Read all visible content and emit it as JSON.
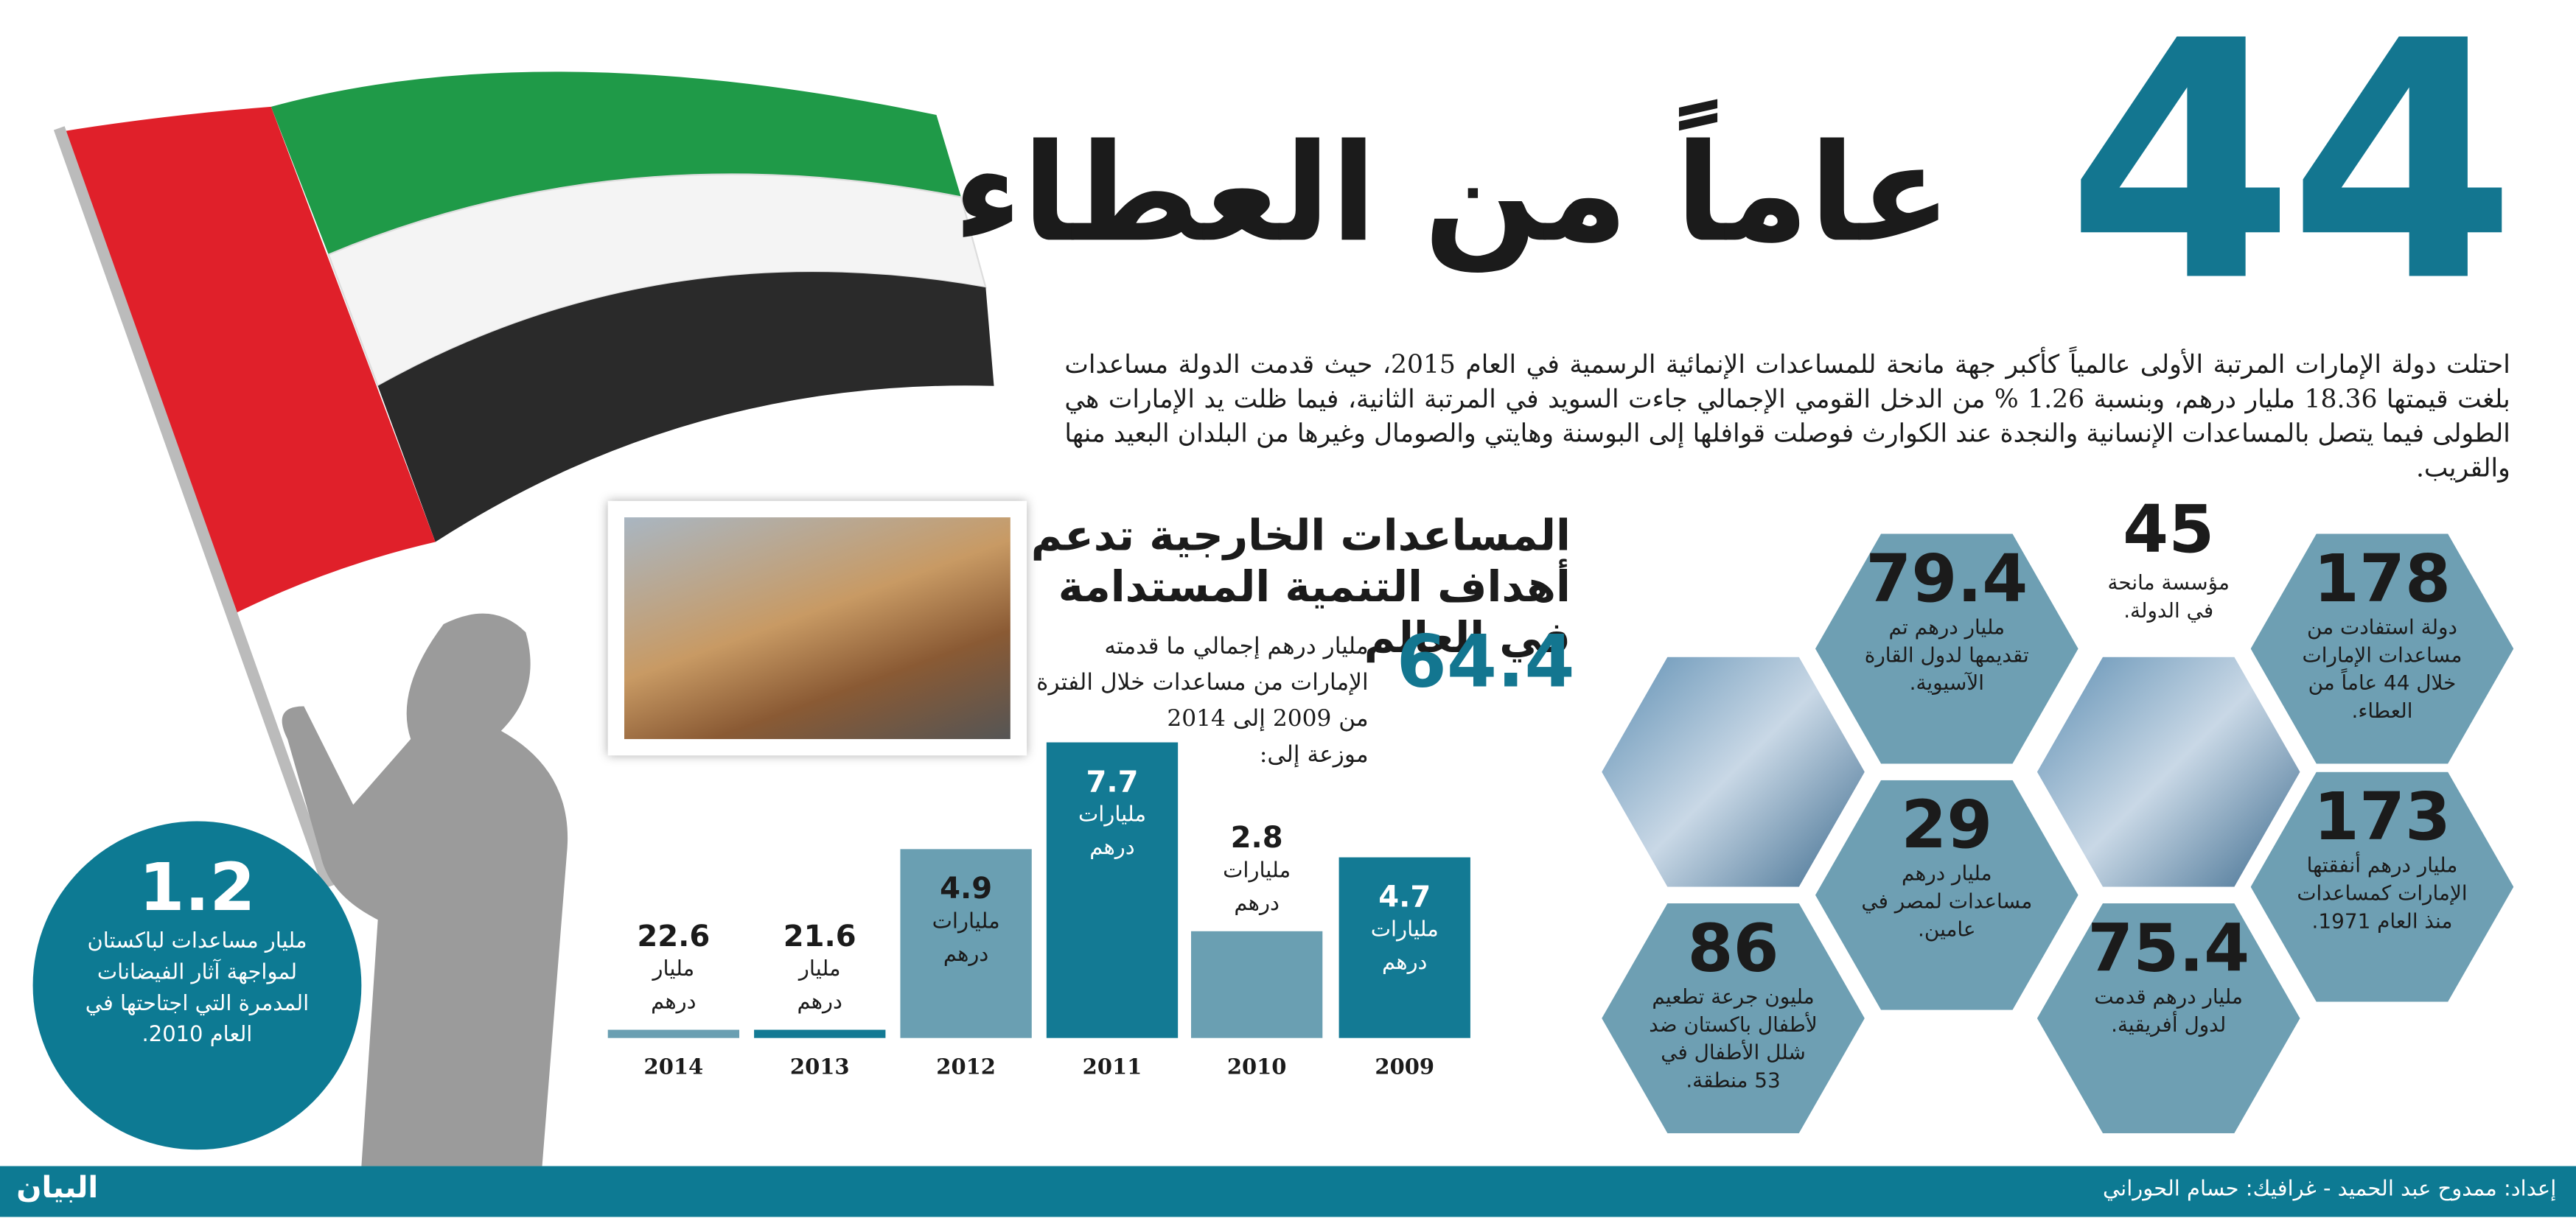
{
  "title": {
    "number": "44",
    "text": "عاماً من العطاء"
  },
  "intro": "احتلت دولة الإمارات المرتبة الأولى عالمياً كأكبر جهة مانحة للمساعدات الإنمائية الرسمية في العام 2015، حيث قدمت الدولة مساعدات بلغت قيمتها 18.36 مليار درهم، وبنسبة 1.26 % من الدخل القومي الإجمالي جاءت السويد في المرتبة الثانية، فيما ظلت يد الإمارات هي الطولى فيما يتصل بالمساعدات الإنسانية والنجدة عند الكوارث فوصلت قوافلها إلى البوسنة وهايتي والصومال وغيرها من البلدان البعيد منها والقريب.",
  "section": {
    "heading": [
      "المساعدات الخارجية تدعم",
      "أهداف التنمية المستدامة في العالم"
    ],
    "big_number": "64.4",
    "description": "مليار درهم إجمالي ما قدمته الإمارات من مساعدات خلال الفترة من 2009 إلى 2014",
    "distributed": "موزعة إلى:"
  },
  "bars": [
    {
      "year": "2009",
      "value": "4.7",
      "unit": "مليارات درهم"
    },
    {
      "year": "2010",
      "value": "2.8",
      "unit": "مليارات درهم"
    },
    {
      "year": "2011",
      "value": "7.7",
      "unit": "مليارات درهم"
    },
    {
      "year": "2012",
      "value": "4.9",
      "unit": "مليارات درهم"
    },
    {
      "year": "2013",
      "value": "21.6",
      "unit": "مليار درهم"
    },
    {
      "year": "2014",
      "value": "22.6",
      "unit": "مليار درهم"
    }
  ],
  "hexagons": [
    {
      "number": "178",
      "text": "دولة استفادت من مساعدات الإمارات خلال 44 عاماً من العطاء."
    },
    {
      "number": "45",
      "text": "مؤسسة مانحة في الدولة."
    },
    {
      "number": "79.4",
      "text": "مليار درهم تم تقديمها لدول القارة الآسيوية."
    },
    {
      "number": "173",
      "text": "مليار درهم أنفقتها الإمارات كمساعدات منذ العام 1971."
    },
    {
      "number": "29",
      "text": "مليار درهم مساعدات لمصر في عامين."
    },
    {
      "number": "75.4",
      "text": "مليار درهم قدمت لدول أفريقية."
    },
    {
      "number": "86",
      "text": "مليون جرعة تطعيم لأطفال باكستان ضد شلل الأطفال في 53 منطقة."
    }
  ],
  "circle": {
    "number": "1.2",
    "text": "مليار مساعدات لباكستان لمواجهة آثار الفيضانات المدمرة التي اجتاحتها في العام 2010."
  },
  "footer": {
    "credits": "إعداد: ممدوح عبد الحميد - غرافيك: حسام الحوراني",
    "logo": "البيان"
  }
}
